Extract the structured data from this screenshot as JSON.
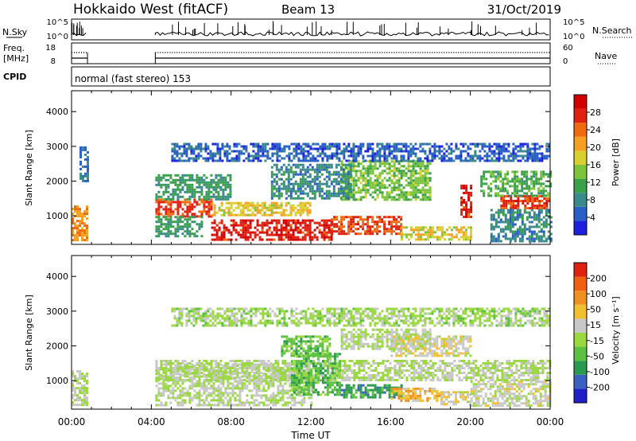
{
  "header": {
    "station": "Hokkaido West (fitACF)",
    "beam": "Beam 13",
    "date": "31/Oct/2019"
  },
  "strip_panels": {
    "nsky": {
      "label": "N.Sky",
      "ticks": [
        "10^5",
        "10^0"
      ],
      "right_label": "N.Search",
      "right_ticks": [
        "10^5",
        "10^0"
      ]
    },
    "freq": {
      "label_line1": "Freq.",
      "label_line2": "[MHz]",
      "ticks": [
        "18",
        "8"
      ],
      "right_label": "Nave",
      "right_ticks": [
        "60",
        "0"
      ]
    },
    "cpid": {
      "label": "CPID",
      "value": "normal (fast stereo) 153"
    }
  },
  "x_axis": {
    "label": "Time UT",
    "ticks": [
      "00:00",
      "04:00",
      "08:00",
      "12:00",
      "16:00",
      "20:00",
      "00:00"
    ]
  },
  "chart_data": [
    {
      "type": "heatmap",
      "name": "power",
      "ylabel": "Slant Range [km]",
      "xlim": [
        0,
        24
      ],
      "ylim": [
        180,
        4600
      ],
      "yticks": [
        "1000",
        "2000",
        "3000",
        "4000"
      ],
      "colorbar": {
        "label": "Power [dB]",
        "ticks": [
          "4",
          "8",
          "12",
          "16",
          "20",
          "24",
          "28"
        ],
        "range": [
          0,
          32
        ],
        "colors": [
          "#1f1fe0",
          "#2a5fc8",
          "#3a8a8a",
          "#3aa04a",
          "#7cc43a",
          "#d8d030",
          "#f5a020",
          "#f06a10",
          "#e02010",
          "#d00000"
        ]
      },
      "regions": [
        {
          "t0": 0.0,
          "t1": 0.8,
          "r0": 300,
          "r1": 1300,
          "v": 22
        },
        {
          "t0": 0.4,
          "t1": 0.8,
          "r0": 2000,
          "r1": 3000,
          "v": 6
        },
        {
          "t0": 4.2,
          "t1": 7.0,
          "r0": 1000,
          "r1": 1500,
          "v": 26
        },
        {
          "t0": 4.2,
          "t1": 8.0,
          "r0": 1500,
          "r1": 2200,
          "v": 10
        },
        {
          "t0": 4.2,
          "t1": 6.5,
          "r0": 400,
          "r1": 1000,
          "v": 10
        },
        {
          "t0": 7.0,
          "t1": 12.0,
          "r0": 1000,
          "r1": 1400,
          "v": 18
        },
        {
          "t0": 7.0,
          "t1": 13.0,
          "r0": 300,
          "r1": 900,
          "v": 28
        },
        {
          "t0": 13.0,
          "t1": 16.5,
          "r0": 500,
          "r1": 1000,
          "v": 26
        },
        {
          "t0": 16.5,
          "t1": 20.0,
          "r0": 300,
          "r1": 700,
          "v": 18
        },
        {
          "t0": 13.5,
          "t1": 18.0,
          "r0": 1500,
          "r1": 2600,
          "v": 14
        },
        {
          "t0": 10.0,
          "t1": 14.0,
          "r0": 1500,
          "r1": 2500,
          "v": 8
        },
        {
          "t0": 5.0,
          "t1": 24.0,
          "r0": 2600,
          "r1": 3100,
          "v": 5
        },
        {
          "t0": 19.5,
          "t1": 20.0,
          "r0": 1000,
          "r1": 1900,
          "v": 28
        },
        {
          "t0": 21.5,
          "t1": 24.0,
          "r0": 1200,
          "r1": 1600,
          "v": 26
        },
        {
          "t0": 20.5,
          "t1": 24.0,
          "r0": 1600,
          "r1": 2300,
          "v": 12
        },
        {
          "t0": 21.0,
          "t1": 24.0,
          "r0": 300,
          "r1": 1200,
          "v": 8
        }
      ]
    },
    {
      "type": "heatmap",
      "name": "velocity",
      "ylabel": "Slant Range [km]",
      "xlim": [
        0,
        24
      ],
      "ylim": [
        180,
        4600
      ],
      "yticks": [
        "1000",
        "2000",
        "3000",
        "4000"
      ],
      "colorbar": {
        "label": "Velocity [m s⁻¹]",
        "ticks": [
          "200",
          "100",
          "50",
          "15",
          "-15",
          "-50",
          "-100",
          "-200"
        ],
        "range": [
          -250,
          250
        ],
        "colors": [
          "#2020c8",
          "#3a60c0",
          "#2a9a50",
          "#5cc040",
          "#9ad840",
          "#c8c8c8",
          "#f0c030",
          "#f09020",
          "#f06010",
          "#e02010"
        ]
      },
      "regions": [
        {
          "t0": 0.0,
          "t1": 0.8,
          "r0": 300,
          "r1": 1300,
          "v": 0
        },
        {
          "t0": 4.2,
          "t1": 12.0,
          "r0": 300,
          "r1": 1500,
          "v": 0
        },
        {
          "t0": 4.2,
          "t1": 24.0,
          "r0": 1000,
          "r1": 1600,
          "v": 0
        },
        {
          "t0": 11.0,
          "t1": 13.5,
          "r0": 600,
          "r1": 1800,
          "v": -80
        },
        {
          "t0": 10.5,
          "t1": 13.0,
          "r0": 1700,
          "r1": 2300,
          "v": -70
        },
        {
          "t0": 13.5,
          "t1": 16.5,
          "r0": 500,
          "r1": 900,
          "v": -120
        },
        {
          "t0": 16.0,
          "t1": 18.5,
          "r0": 400,
          "r1": 800,
          "v": 80
        },
        {
          "t0": 18.5,
          "t1": 20.0,
          "r0": 300,
          "r1": 700,
          "v": 40
        },
        {
          "t0": 13.5,
          "t1": 18.0,
          "r0": 1900,
          "r1": 2500,
          "v": 0
        },
        {
          "t0": 16.0,
          "t1": 20.0,
          "r0": 1700,
          "r1": 2300,
          "v": 30
        },
        {
          "t0": 5.0,
          "t1": 24.0,
          "r0": 2600,
          "r1": 3100,
          "v": -20
        },
        {
          "t0": 20.0,
          "t1": 24.0,
          "r0": 300,
          "r1": 1000,
          "v": 20
        }
      ]
    }
  ]
}
